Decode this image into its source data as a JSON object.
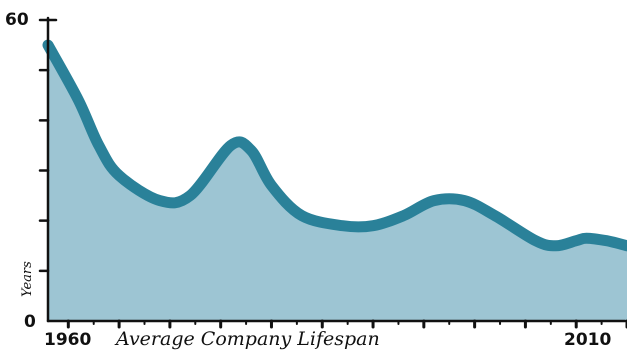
{
  "chart_data": {
    "type": "area",
    "title": "",
    "xlabel": "Average Company Lifespan",
    "ylabel": "Years",
    "x_ticks": [
      "1960",
      "2010"
    ],
    "y_ticks": [
      "0",
      "60"
    ],
    "xlim": [
      1958,
      2015
    ],
    "ylim": [
      0,
      60
    ],
    "grid": false,
    "series": [
      {
        "x": [
          1958,
          1961,
          1963,
          1965,
          1969,
          1972,
          1976,
          1978,
          1980,
          1983,
          1987,
          1990,
          1993,
          1996,
          1999,
          2002,
          2006,
          2008,
          2010,
          2011,
          2013,
          2015
        ],
        "y": [
          55,
          44,
          35,
          29,
          24,
          25,
          35,
          34,
          27,
          21,
          19,
          19,
          21,
          24,
          24,
          21,
          16,
          15,
          16,
          16.5,
          16,
          15
        ],
        "color": "#2a8199",
        "fill": "#9dc5d3"
      }
    ]
  }
}
